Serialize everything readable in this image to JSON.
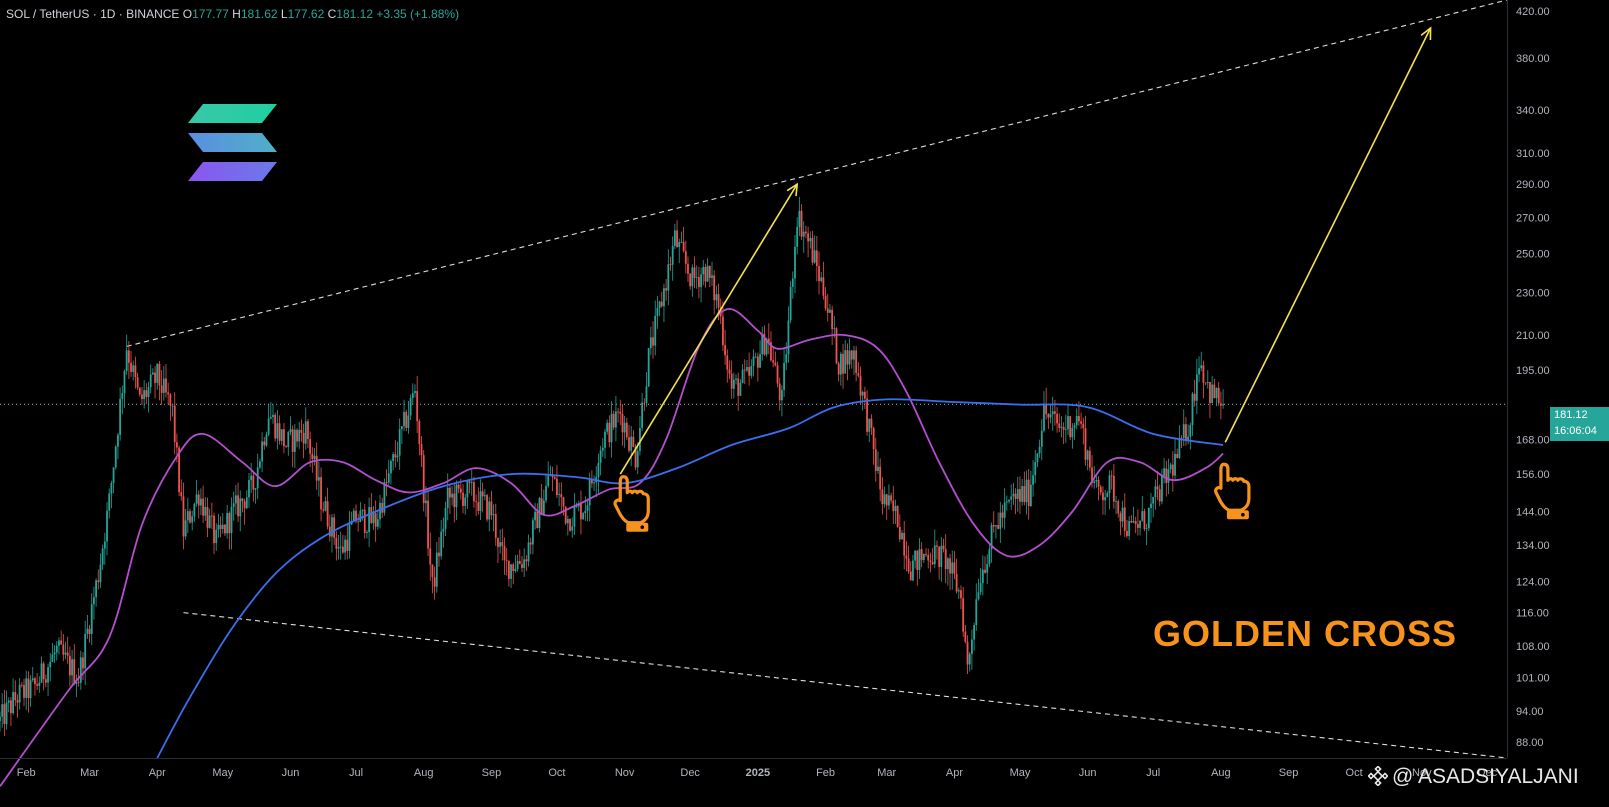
{
  "header": {
    "symbol": "SOL / TetherUS",
    "interval": "1D",
    "exchange": "BINANCE",
    "open_label": "O",
    "open": "177.77",
    "high_label": "H",
    "high": "181.62",
    "low_label": "L",
    "low": "177.62",
    "close_label": "C",
    "close": "181.12",
    "change": "+3.35 (+1.88%)"
  },
  "price_tag": {
    "price": "181.12",
    "countdown": "16:06:04"
  },
  "annotation": {
    "text": "GOLDEN CROSS"
  },
  "watermark": {
    "text": "@ ASADSIYALJANI"
  },
  "colors": {
    "background": "#000000",
    "up_candle": "#26a69a",
    "down_candle": "#ef5350",
    "ma_short": "#b44fcf",
    "ma_long": "#3a6ff0",
    "arrow": "#f5e050",
    "trendline": "#dddddd",
    "annotation": "#f7931a",
    "axis_text": "#b2b5be"
  },
  "icons": [
    "solana-logo-icon",
    "pointing-hand-icon",
    "binance-logo-icon"
  ],
  "chart_data": {
    "type": "candlestick",
    "scale": "log",
    "title": "SOL / TetherUS · 1D · BINANCE",
    "y_axis": {
      "position": "right",
      "ticks": [
        "420.00",
        "380.00",
        "340.00",
        "310.00",
        "290.00",
        "270.00",
        "250.00",
        "230.00",
        "210.00",
        "195.00",
        "181.12",
        "168.00",
        "156.00",
        "144.00",
        "134.00",
        "124.00",
        "116.00",
        "108.00",
        "101.00",
        "94.00",
        "88.00"
      ],
      "ylim": [
        85,
        430
      ]
    },
    "x_axis": {
      "ticks": [
        "Feb",
        "Mar",
        "Apr",
        "May",
        "Jun",
        "Jul",
        "Aug",
        "Sep",
        "Oct",
        "Nov",
        "Dec",
        "2025",
        "Feb",
        "Mar",
        "Apr",
        "May",
        "Jun",
        "Jul",
        "Aug",
        "Sep",
        "Oct",
        "Nov",
        "Dec"
      ],
      "xlim": [
        "2024-01-20",
        "2025-12-10"
      ]
    },
    "last_price": 181.12,
    "price_path": [
      {
        "date": "2024-01-20",
        "price": 92
      },
      {
        "date": "2024-01-28",
        "price": 97
      },
      {
        "date": "2024-02-05",
        "price": 99
      },
      {
        "date": "2024-02-15",
        "price": 107
      },
      {
        "date": "2024-02-25",
        "price": 101
      },
      {
        "date": "2024-03-05",
        "price": 126
      },
      {
        "date": "2024-03-10",
        "price": 147
      },
      {
        "date": "2024-03-18",
        "price": 205
      },
      {
        "date": "2024-03-24",
        "price": 182
      },
      {
        "date": "2024-04-01",
        "price": 192
      },
      {
        "date": "2024-04-08",
        "price": 178
      },
      {
        "date": "2024-04-13",
        "price": 138
      },
      {
        "date": "2024-04-20",
        "price": 150
      },
      {
        "date": "2024-04-28",
        "price": 135
      },
      {
        "date": "2024-05-06",
        "price": 144
      },
      {
        "date": "2024-05-15",
        "price": 152
      },
      {
        "date": "2024-05-22",
        "price": 178
      },
      {
        "date": "2024-05-30",
        "price": 166
      },
      {
        "date": "2024-06-08",
        "price": 172
      },
      {
        "date": "2024-06-15",
        "price": 148
      },
      {
        "date": "2024-06-24",
        "price": 132
      },
      {
        "date": "2024-07-01",
        "price": 142
      },
      {
        "date": "2024-07-10",
        "price": 141
      },
      {
        "date": "2024-07-18",
        "price": 160
      },
      {
        "date": "2024-07-28",
        "price": 187
      },
      {
        "date": "2024-08-05",
        "price": 122
      },
      {
        "date": "2024-08-12",
        "price": 148
      },
      {
        "date": "2024-08-22",
        "price": 150
      },
      {
        "date": "2024-09-01",
        "price": 144
      },
      {
        "date": "2024-09-07",
        "price": 128
      },
      {
        "date": "2024-09-16",
        "price": 130
      },
      {
        "date": "2024-09-28",
        "price": 156
      },
      {
        "date": "2024-10-06",
        "price": 142
      },
      {
        "date": "2024-10-14",
        "price": 146
      },
      {
        "date": "2024-10-22",
        "price": 168
      },
      {
        "date": "2024-10-30",
        "price": 178
      },
      {
        "date": "2024-11-06",
        "price": 162
      },
      {
        "date": "2024-11-12",
        "price": 200
      },
      {
        "date": "2024-11-20",
        "price": 236
      },
      {
        "date": "2024-11-24",
        "price": 258
      },
      {
        "date": "2024-12-02",
        "price": 236
      },
      {
        "date": "2024-12-08",
        "price": 242
      },
      {
        "date": "2024-12-14",
        "price": 224
      },
      {
        "date": "2024-12-20",
        "price": 187
      },
      {
        "date": "2024-12-28",
        "price": 192
      },
      {
        "date": "2025-01-05",
        "price": 210
      },
      {
        "date": "2025-01-12",
        "price": 182
      },
      {
        "date": "2025-01-19",
        "price": 272
      },
      {
        "date": "2025-01-25",
        "price": 254
      },
      {
        "date": "2025-02-01",
        "price": 228
      },
      {
        "date": "2025-02-07",
        "price": 198
      },
      {
        "date": "2025-02-14",
        "price": 202
      },
      {
        "date": "2025-02-20",
        "price": 176
      },
      {
        "date": "2025-02-27",
        "price": 148
      },
      {
        "date": "2025-03-06",
        "price": 142
      },
      {
        "date": "2025-03-12",
        "price": 128
      },
      {
        "date": "2025-03-20",
        "price": 132
      },
      {
        "date": "2025-03-28",
        "price": 130
      },
      {
        "date": "2025-04-04",
        "price": 120
      },
      {
        "date": "2025-04-07",
        "price": 103
      },
      {
        "date": "2025-04-12",
        "price": 124
      },
      {
        "date": "2025-04-20",
        "price": 140
      },
      {
        "date": "2025-04-28",
        "price": 148
      },
      {
        "date": "2025-05-05",
        "price": 150
      },
      {
        "date": "2025-05-12",
        "price": 178
      },
      {
        "date": "2025-05-20",
        "price": 172
      },
      {
        "date": "2025-05-28",
        "price": 176
      },
      {
        "date": "2025-06-05",
        "price": 150
      },
      {
        "date": "2025-06-12",
        "price": 152
      },
      {
        "date": "2025-06-20",
        "price": 138
      },
      {
        "date": "2025-06-28",
        "price": 142
      },
      {
        "date": "2025-07-05",
        "price": 152
      },
      {
        "date": "2025-07-12",
        "price": 162
      },
      {
        "date": "2025-07-18",
        "price": 176
      },
      {
        "date": "2025-07-22",
        "price": 200
      },
      {
        "date": "2025-07-27",
        "price": 186
      },
      {
        "date": "2025-08-02",
        "price": 181
      }
    ],
    "series": [
      {
        "role": "short moving average",
        "points": [
          {
            "date": "2024-01-20",
            "value": 80
          },
          {
            "date": "2024-02-20",
            "value": 98
          },
          {
            "date": "2024-03-10",
            "value": 110
          },
          {
            "date": "2024-03-25",
            "value": 140
          },
          {
            "date": "2024-04-10",
            "value": 162
          },
          {
            "date": "2024-04-22",
            "value": 170
          },
          {
            "date": "2024-05-10",
            "value": 160
          },
          {
            "date": "2024-05-25",
            "value": 152
          },
          {
            "date": "2024-06-10",
            "value": 160
          },
          {
            "date": "2024-06-25",
            "value": 160
          },
          {
            "date": "2024-07-10",
            "value": 154
          },
          {
            "date": "2024-07-25",
            "value": 150
          },
          {
            "date": "2024-08-10",
            "value": 153
          },
          {
            "date": "2024-08-25",
            "value": 158
          },
          {
            "date": "2024-09-10",
            "value": 153
          },
          {
            "date": "2024-09-25",
            "value": 143
          },
          {
            "date": "2024-10-10",
            "value": 146
          },
          {
            "date": "2024-10-25",
            "value": 151
          },
          {
            "date": "2024-11-08",
            "value": 153
          },
          {
            "date": "2024-11-20",
            "value": 168
          },
          {
            "date": "2024-12-05",
            "value": 205
          },
          {
            "date": "2024-12-18",
            "value": 222
          },
          {
            "date": "2025-01-01",
            "value": 212
          },
          {
            "date": "2025-01-10",
            "value": 204
          },
          {
            "date": "2025-01-25",
            "value": 208
          },
          {
            "date": "2025-02-10",
            "value": 210
          },
          {
            "date": "2025-02-25",
            "value": 204
          },
          {
            "date": "2025-03-10",
            "value": 186
          },
          {
            "date": "2025-03-25",
            "value": 160
          },
          {
            "date": "2025-04-10",
            "value": 140
          },
          {
            "date": "2025-04-25",
            "value": 131
          },
          {
            "date": "2025-05-10",
            "value": 134
          },
          {
            "date": "2025-05-25",
            "value": 144
          },
          {
            "date": "2025-06-10",
            "value": 160
          },
          {
            "date": "2025-06-25",
            "value": 160
          },
          {
            "date": "2025-07-10",
            "value": 154
          },
          {
            "date": "2025-07-25",
            "value": 158
          },
          {
            "date": "2025-08-02",
            "value": 163
          }
        ]
      },
      {
        "role": "long moving average",
        "points": [
          {
            "date": "2024-04-01",
            "value": 85
          },
          {
            "date": "2024-04-15",
            "value": 96
          },
          {
            "date": "2024-05-05",
            "value": 112
          },
          {
            "date": "2024-05-25",
            "value": 126
          },
          {
            "date": "2024-06-15",
            "value": 136
          },
          {
            "date": "2024-07-10",
            "value": 144
          },
          {
            "date": "2024-08-10",
            "value": 152
          },
          {
            "date": "2024-09-10",
            "value": 156
          },
          {
            "date": "2024-10-10",
            "value": 155
          },
          {
            "date": "2024-11-01",
            "value": 153
          },
          {
            "date": "2024-11-25",
            "value": 158
          },
          {
            "date": "2024-12-20",
            "value": 166
          },
          {
            "date": "2025-01-15",
            "value": 172
          },
          {
            "date": "2025-02-05",
            "value": 180
          },
          {
            "date": "2025-03-01",
            "value": 183
          },
          {
            "date": "2025-04-01",
            "value": 182
          },
          {
            "date": "2025-05-01",
            "value": 181
          },
          {
            "date": "2025-06-01",
            "value": 180
          },
          {
            "date": "2025-07-01",
            "value": 170
          },
          {
            "date": "2025-08-02",
            "value": 166
          }
        ]
      }
    ],
    "trendlines": [
      {
        "style": "dashed",
        "from": {
          "date": "2024-03-18",
          "value": 205
        },
        "to": {
          "date": "2025-12-10",
          "value": 430
        }
      },
      {
        "style": "dashed",
        "from": {
          "date": "2024-04-13",
          "value": 116
        },
        "to": {
          "date": "2025-12-10",
          "value": 85
        }
      }
    ],
    "arrows": [
      {
        "from": {
          "date": "2024-10-30",
          "value": 156
        },
        "to": {
          "date": "2025-01-19",
          "value": 290
        }
      },
      {
        "from": {
          "date": "2025-08-03",
          "value": 167
        },
        "to": {
          "date": "2025-11-05",
          "value": 405
        }
      }
    ],
    "markers": [
      {
        "icon": "pointing-hand-icon",
        "date": "2024-10-30",
        "value": 148
      },
      {
        "icon": "pointing-hand-icon",
        "date": "2025-08-01",
        "value": 152
      }
    ]
  }
}
